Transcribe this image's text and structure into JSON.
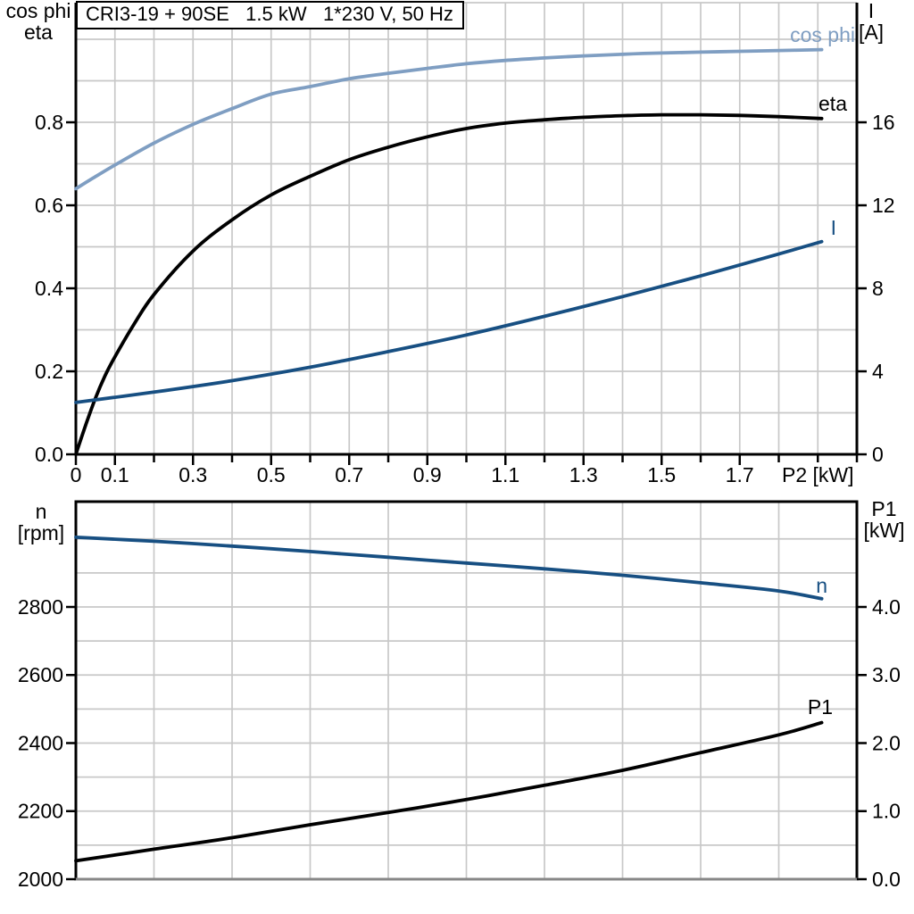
{
  "colors": {
    "light_blue": "#7F9EC2",
    "dark_blue": "#174F82",
    "black": "#000000",
    "grid": "#C8C8C8",
    "gray_border": "#878787"
  },
  "chart_data": [
    {
      "type": "line",
      "title": "CRI3-19 + 90SE   1.5 kW   1*230 V, 50 Hz",
      "left_axis": {
        "title_lines": [
          "cos phi",
          "eta"
        ],
        "tick_values": [
          0.0,
          0.2,
          0.4,
          0.6,
          0.8
        ],
        "tick_labels": [
          "0.0",
          "0.2",
          "0.4",
          "0.6",
          "0.8"
        ],
        "range": [
          0,
          1.0882
        ],
        "grid_step": 0.1
      },
      "right_axis": {
        "title_lines": [
          "I",
          "[A]"
        ],
        "tick_values": [
          0,
          4,
          8,
          12,
          16
        ],
        "tick_labels": [
          "0",
          "4",
          "8",
          "12",
          "16"
        ],
        "range": [
          0,
          21.76
        ]
      },
      "x_axis": {
        "axis_label": "P2 [kW]",
        "range": [
          0,
          2.0
        ],
        "minor_tick_step": 0.1,
        "tick_values": [
          0,
          0.1,
          0.3,
          0.5,
          0.7,
          0.9,
          1.1,
          1.3,
          1.5,
          1.7
        ],
        "tick_labels": [
          "0",
          "0.1",
          "0.3",
          "0.5",
          "0.7",
          "0.9",
          "1.1",
          "1.3",
          "1.5",
          "1.7"
        ],
        "grid_step": 0.1
      },
      "series": [
        {
          "name": "cos phi",
          "axis": "left",
          "color": "#7F9EC2",
          "x": [
            0,
            0.05,
            0.1,
            0.2,
            0.3,
            0.4,
            0.5,
            0.6,
            0.7,
            0.8,
            0.9,
            1.0,
            1.1,
            1.2,
            1.3,
            1.4,
            1.5,
            1.6,
            1.7,
            1.8,
            1.91
          ],
          "y": [
            0.64,
            0.669,
            0.697,
            0.75,
            0.795,
            0.833,
            0.868,
            0.886,
            0.905,
            0.918,
            0.93,
            0.941,
            0.949,
            0.955,
            0.96,
            0.964,
            0.967,
            0.969,
            0.971,
            0.973,
            0.975
          ]
        },
        {
          "name": "eta",
          "axis": "left",
          "color": "#000000",
          "x": [
            0,
            0.025,
            0.05,
            0.075,
            0.1,
            0.15,
            0.2,
            0.3,
            0.4,
            0.5,
            0.6,
            0.7,
            0.8,
            0.9,
            1.0,
            1.1,
            1.2,
            1.3,
            1.4,
            1.5,
            1.6,
            1.7,
            1.8,
            1.91
          ],
          "y": [
            0,
            0.07,
            0.135,
            0.19,
            0.235,
            0.315,
            0.385,
            0.49,
            0.565,
            0.625,
            0.67,
            0.71,
            0.74,
            0.765,
            0.785,
            0.798,
            0.806,
            0.812,
            0.816,
            0.818,
            0.818,
            0.8165,
            0.8135,
            0.809
          ]
        },
        {
          "name": "I",
          "axis": "right",
          "color": "#174F82",
          "x": [
            0,
            0.2,
            0.4,
            0.6,
            0.8,
            1.0,
            1.2,
            1.4,
            1.6,
            1.8,
            1.91
          ],
          "y": [
            2.5,
            3.0,
            3.55,
            4.2,
            4.95,
            5.75,
            6.65,
            7.6,
            8.6,
            9.65,
            10.25
          ]
        }
      ]
    },
    {
      "type": "line",
      "left_axis": {
        "title_lines": [
          "n",
          "[rpm]"
        ],
        "tick_values": [
          2000,
          2200,
          2400,
          2600,
          2800
        ],
        "tick_labels": [
          "2000",
          "2200",
          "2400",
          "2600",
          "2800"
        ],
        "range": [
          2000,
          3109.5
        ],
        "grid_step": 100
      },
      "right_axis": {
        "title_lines": [
          "P1",
          "[kW]"
        ],
        "tick_values": [
          0,
          1,
          2,
          3,
          4
        ],
        "tick_labels": [
          "0.0",
          "1.0",
          "2.0",
          "3.0",
          "4.0"
        ],
        "range": [
          0,
          5.55
        ]
      },
      "x_axis": {
        "axis_label": "",
        "range": [
          0,
          2.0
        ],
        "tick_values": [],
        "tick_labels": [],
        "grid_step": 0.2
      },
      "series": [
        {
          "name": "n",
          "axis": "left",
          "color": "#174F82",
          "x": [
            0,
            0.2,
            0.4,
            0.6,
            0.8,
            1.0,
            1.2,
            1.4,
            1.6,
            1.8,
            1.91
          ],
          "y": [
            3005,
            2993,
            2979,
            2963,
            2946,
            2929,
            2912,
            2893,
            2871,
            2847,
            2824
          ]
        },
        {
          "name": "P1",
          "axis": "right",
          "color": "#000000",
          "x": [
            0,
            0.2,
            0.4,
            0.6,
            0.8,
            1.0,
            1.2,
            1.4,
            1.6,
            1.8,
            1.91
          ],
          "y": [
            0.27,
            0.44,
            0.61,
            0.8,
            0.98,
            1.17,
            1.38,
            1.6,
            1.86,
            2.12,
            2.3
          ]
        }
      ]
    }
  ]
}
